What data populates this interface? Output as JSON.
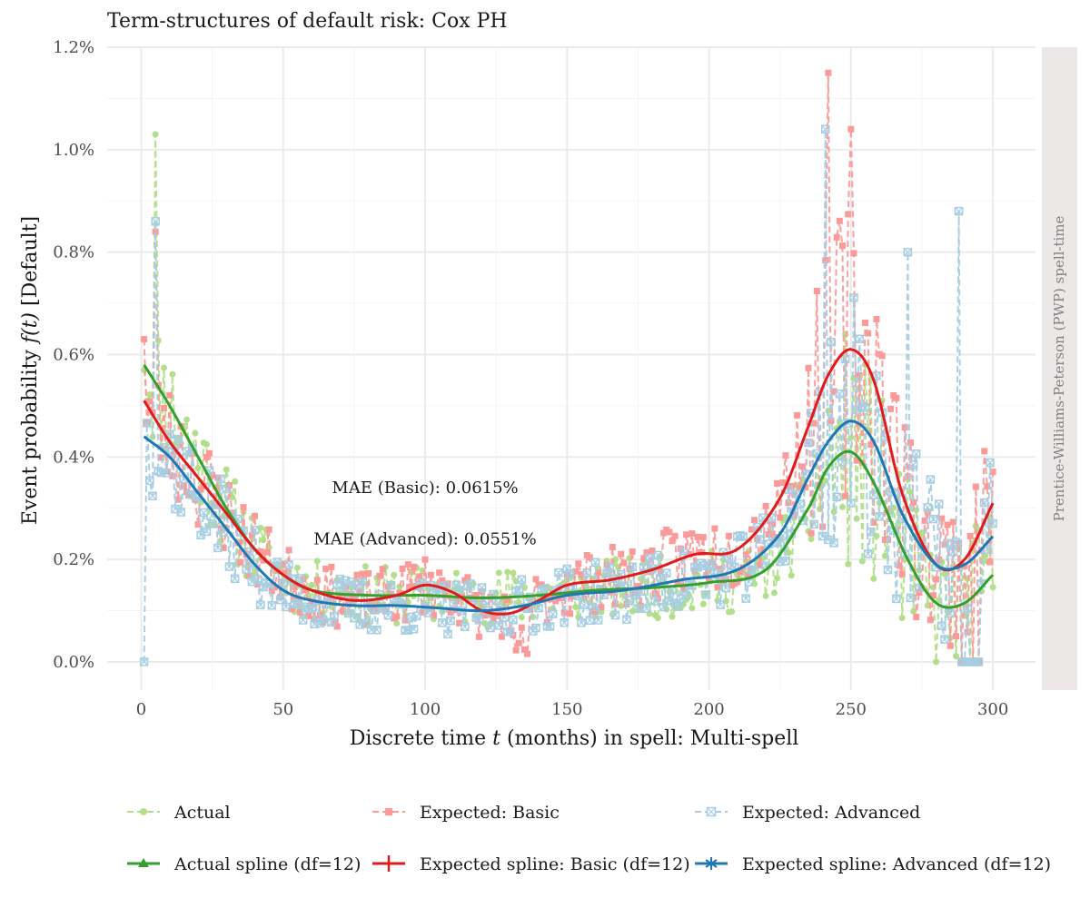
{
  "chart_data": {
    "type": "line",
    "title": "Term-structures of default risk: Cox PH",
    "xlabel_prefix": "Discrete time ",
    "xlabel_var": "t",
    "xlabel_suffix": " (months) in spell: Multi-spell",
    "ylabel_prefix": "Event probability ",
    "ylabel_math": "f(t)",
    "ylabel_suffix": " [Default]",
    "facet_label": "Prentice-Williams-Peterson (PWP) spell-time",
    "xlim": [
      -12,
      315
    ],
    "ylim": [
      -0.55,
      1.2
    ],
    "x_ticks": [
      0,
      50,
      100,
      150,
      200,
      250,
      300
    ],
    "x_tick_labels": [
      "0",
      "50",
      "100",
      "150",
      "200",
      "250",
      "300"
    ],
    "y_ticks": [
      0,
      0.2,
      0.4,
      0.6,
      0.8,
      1.0,
      1.2
    ],
    "y_tick_labels": [
      "0.0%",
      "0.2%",
      "0.4%",
      "0.6%",
      "0.8%",
      "1.0%",
      "1.2%"
    ],
    "grid": true,
    "legend_position": "bottom",
    "annotations": [
      {
        "text": "MAE (Basic): 0.0615%",
        "x": 100,
        "y": 0.34
      },
      {
        "text": "MAE (Advanced): 0.0551%",
        "x": 100,
        "y": 0.24
      }
    ],
    "series": [
      {
        "name": "Actual",
        "color": "#b2df8a",
        "style": "dashed",
        "marker": "circle",
        "kind": "points",
        "spline_key": "actual_spline",
        "seed": 11
      },
      {
        "name": "Expected: Basic",
        "color": "#fb9a99",
        "style": "dashed",
        "marker": "square",
        "kind": "points",
        "spline_key": "basic_spline",
        "seed": 23
      },
      {
        "name": "Expected: Advanced",
        "color": "#a6cee3",
        "style": "dashed",
        "marker": "square-x",
        "kind": "points",
        "spline_key": "adv_spline",
        "seed": 37
      },
      {
        "name": "Actual spline (df=12)",
        "color": "#33a02c",
        "style": "solid",
        "marker": "triangle",
        "kind": "spline",
        "key": "actual_spline"
      },
      {
        "name": "Expected spline: Basic (df=12)",
        "color": "#e31a1c",
        "style": "solid",
        "marker": "plus",
        "kind": "spline",
        "key": "basic_spline"
      },
      {
        "name": "Expected spline: Advanced (df=12)",
        "color": "#1f78b4",
        "style": "solid",
        "marker": "asterisk",
        "kind": "spline",
        "key": "adv_spline"
      }
    ],
    "splines": {
      "actual_spline": {
        "x": [
          1,
          10,
          20,
          30,
          40,
          50,
          60,
          80,
          100,
          120,
          140,
          160,
          180,
          200,
          220,
          235,
          242,
          250,
          258,
          270,
          280,
          290,
          300
        ],
        "y": [
          0.58,
          0.5,
          0.4,
          0.3,
          0.22,
          0.17,
          0.14,
          0.13,
          0.13,
          0.125,
          0.13,
          0.14,
          0.145,
          0.155,
          0.18,
          0.3,
          0.38,
          0.41,
          0.35,
          0.2,
          0.115,
          0.115,
          0.17
        ]
      },
      "basic_spline": {
        "x": [
          1,
          10,
          20,
          30,
          40,
          50,
          60,
          75,
          90,
          100,
          110,
          120,
          130,
          140,
          150,
          165,
          180,
          195,
          210,
          225,
          235,
          242,
          250,
          258,
          268,
          280,
          290,
          300
        ],
        "y": [
          0.51,
          0.43,
          0.36,
          0.29,
          0.22,
          0.17,
          0.14,
          0.12,
          0.13,
          0.15,
          0.135,
          0.1,
          0.095,
          0.12,
          0.15,
          0.16,
          0.18,
          0.21,
          0.22,
          0.32,
          0.46,
          0.56,
          0.61,
          0.55,
          0.33,
          0.19,
          0.2,
          0.31
        ]
      },
      "adv_spline": {
        "x": [
          1,
          10,
          20,
          30,
          40,
          50,
          60,
          75,
          90,
          105,
          120,
          135,
          150,
          170,
          190,
          210,
          225,
          235,
          242,
          250,
          258,
          268,
          280,
          290,
          300
        ],
        "y": [
          0.44,
          0.4,
          0.33,
          0.26,
          0.19,
          0.14,
          0.12,
          0.11,
          0.11,
          0.105,
          0.1,
          0.11,
          0.13,
          0.14,
          0.16,
          0.18,
          0.25,
          0.36,
          0.43,
          0.47,
          0.43,
          0.29,
          0.19,
          0.19,
          0.245
        ]
      }
    }
  }
}
